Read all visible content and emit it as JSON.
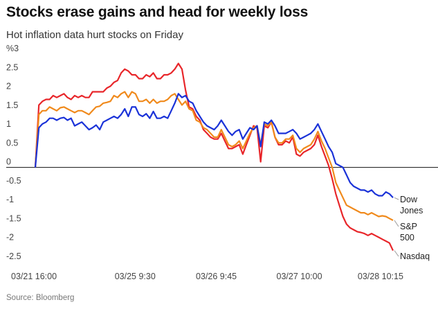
{
  "header": {
    "title": "Stocks erase gains and head for weekly loss",
    "subtitle": "Hot inflation data hurt stocks on Friday"
  },
  "footer": {
    "source": "Source: Bloomberg"
  },
  "chart_data": {
    "type": "line",
    "ylabel": "%3",
    "ylim": [
      -2.5,
      3
    ],
    "y_ticks": [
      "3",
      "2.5",
      "2",
      "1.5",
      "1",
      "0.5",
      "0",
      "-0.5",
      "-1",
      "-1.5",
      "-2",
      "-2.5"
    ],
    "x_ticks": [
      "03/21 16:00",
      "03/25 9:30",
      "03/26 9:45",
      "03/27 10:00",
      "03/28 10:15"
    ],
    "x_range": [
      0,
      100
    ],
    "zero_line": true,
    "grid": false,
    "series": [
      {
        "name": "Dow Jones",
        "label_lines": [
          "Dow",
          "Jones"
        ],
        "color": "#1a32d8",
        "x": [
          0,
          1,
          2,
          3,
          4,
          5,
          6,
          7,
          8,
          9,
          10,
          11,
          12,
          13,
          14,
          15,
          16,
          17,
          18,
          19,
          20,
          21,
          22,
          23,
          24,
          25,
          26,
          27,
          28,
          29,
          30,
          31,
          32,
          33,
          34,
          35,
          36,
          37,
          38,
          39,
          40,
          41,
          42,
          43,
          44,
          45,
          46,
          47,
          48,
          49,
          50,
          51,
          52,
          53,
          54,
          55,
          56,
          57,
          58,
          59,
          60,
          61,
          62,
          63,
          64,
          65,
          66,
          67,
          68,
          69,
          70,
          71,
          72,
          73,
          74,
          75,
          76,
          77,
          78,
          79,
          80,
          81,
          82,
          83,
          84,
          85,
          86,
          87,
          88,
          89,
          90,
          91,
          92,
          93,
          94,
          95,
          96,
          97,
          98,
          99,
          100
        ],
        "y": [
          0,
          1.05,
          1.15,
          1.2,
          1.3,
          1.3,
          1.25,
          1.3,
          1.32,
          1.25,
          1.3,
          1.1,
          1.15,
          1.2,
          1.1,
          1.0,
          1.05,
          1.12,
          1.0,
          1.2,
          1.25,
          1.3,
          1.35,
          1.3,
          1.4,
          1.55,
          1.35,
          1.6,
          1.6,
          1.4,
          1.35,
          1.42,
          1.3,
          1.48,
          1.3,
          1.3,
          1.35,
          1.3,
          1.5,
          1.7,
          1.95,
          1.85,
          1.9,
          1.75,
          1.7,
          1.5,
          1.35,
          1.2,
          1.1,
          1.05,
          1.0,
          1.1,
          1.25,
          1.1,
          0.95,
          0.85,
          0.95,
          1.0,
          0.75,
          0.9,
          1.05,
          1.0,
          1.1,
          0.55,
          1.2,
          1.15,
          1.25,
          1.1,
          0.9,
          0.9,
          0.9,
          0.95,
          1.0,
          0.9,
          0.75,
          0.8,
          0.85,
          0.9,
          1.0,
          1.15,
          0.95,
          0.75,
          0.55,
          0.4,
          0.1,
          0.05,
          0.0,
          -0.2,
          -0.4,
          -0.5,
          -0.55,
          -0.6,
          -0.6,
          -0.65,
          -0.6,
          -0.7,
          -0.75,
          -0.75,
          -0.65,
          -0.7,
          -0.8
        ]
      },
      {
        "name": "S&P 500",
        "label_lines": [
          "S&P",
          "500"
        ],
        "color": "#f08a1c",
        "x": [
          0,
          1,
          2,
          3,
          4,
          5,
          6,
          7,
          8,
          9,
          10,
          11,
          12,
          13,
          14,
          15,
          16,
          17,
          18,
          19,
          20,
          21,
          22,
          23,
          24,
          25,
          26,
          27,
          28,
          29,
          30,
          31,
          32,
          33,
          34,
          35,
          36,
          37,
          38,
          39,
          40,
          41,
          42,
          43,
          44,
          45,
          46,
          47,
          48,
          49,
          50,
          51,
          52,
          53,
          54,
          55,
          56,
          57,
          58,
          59,
          60,
          61,
          62,
          63,
          64,
          65,
          66,
          67,
          68,
          69,
          70,
          71,
          72,
          73,
          74,
          75,
          76,
          77,
          78,
          79,
          80,
          81,
          82,
          83,
          84,
          85,
          86,
          87,
          88,
          89,
          90,
          91,
          92,
          93,
          94,
          95,
          96,
          97,
          98,
          99,
          100
        ],
        "y": [
          0,
          1.4,
          1.5,
          1.5,
          1.6,
          1.55,
          1.5,
          1.58,
          1.6,
          1.55,
          1.5,
          1.45,
          1.5,
          1.5,
          1.45,
          1.4,
          1.5,
          1.6,
          1.62,
          1.7,
          1.72,
          1.75,
          1.9,
          1.85,
          1.95,
          2.0,
          1.85,
          2.0,
          1.95,
          1.75,
          1.75,
          1.8,
          1.7,
          1.8,
          1.7,
          1.75,
          1.75,
          1.8,
          1.9,
          1.95,
          1.8,
          1.65,
          1.75,
          1.55,
          1.5,
          1.25,
          1.2,
          1.05,
          1.0,
          0.9,
          0.8,
          0.8,
          1.0,
          0.8,
          0.6,
          0.55,
          0.6,
          0.7,
          0.5,
          0.7,
          0.9,
          1.05,
          1.1,
          0.6,
          1.15,
          1.1,
          1.2,
          0.8,
          0.65,
          0.65,
          0.75,
          0.75,
          0.85,
          0.5,
          0.4,
          0.5,
          0.55,
          0.6,
          0.75,
          0.95,
          0.7,
          0.5,
          0.25,
          0.0,
          -0.4,
          -0.6,
          -0.8,
          -1.0,
          -1.05,
          -1.1,
          -1.15,
          -1.2,
          -1.2,
          -1.25,
          -1.2,
          -1.25,
          -1.3,
          -1.28,
          -1.3,
          -1.35,
          -1.4
        ]
      },
      {
        "name": "Nasdaq",
        "label_lines": [
          "Nasdaq"
        ],
        "color": "#e8262a",
        "x": [
          0,
          1,
          2,
          3,
          4,
          5,
          6,
          7,
          8,
          9,
          10,
          11,
          12,
          13,
          14,
          15,
          16,
          17,
          18,
          19,
          20,
          21,
          22,
          23,
          24,
          25,
          26,
          27,
          28,
          29,
          30,
          31,
          32,
          33,
          34,
          35,
          36,
          37,
          38,
          39,
          40,
          41,
          42,
          43,
          44,
          45,
          46,
          47,
          48,
          49,
          50,
          51,
          52,
          53,
          54,
          55,
          56,
          57,
          58,
          59,
          60,
          61,
          62,
          63,
          64,
          65,
          66,
          67,
          68,
          69,
          70,
          71,
          72,
          73,
          74,
          75,
          76,
          77,
          78,
          79,
          80,
          81,
          82,
          83,
          84,
          85,
          86,
          87,
          88,
          89,
          90,
          91,
          92,
          93,
          94,
          95,
          96,
          97,
          98,
          99,
          100
        ],
        "y": [
          0,
          1.65,
          1.75,
          1.8,
          1.8,
          1.9,
          1.85,
          1.9,
          1.95,
          1.85,
          1.8,
          1.9,
          1.85,
          1.9,
          1.85,
          1.85,
          2.0,
          2.0,
          2.0,
          2.0,
          2.1,
          2.15,
          2.25,
          2.3,
          2.5,
          2.6,
          2.55,
          2.45,
          2.45,
          2.35,
          2.35,
          2.45,
          2.4,
          2.5,
          2.35,
          2.35,
          2.45,
          2.45,
          2.5,
          2.6,
          2.75,
          2.6,
          2.05,
          1.6,
          1.55,
          1.35,
          1.25,
          1.0,
          0.9,
          0.8,
          0.75,
          0.75,
          0.9,
          0.7,
          0.5,
          0.5,
          0.55,
          0.6,
          0.35,
          0.6,
          0.85,
          1.1,
          1.05,
          0.15,
          1.1,
          1.05,
          1.2,
          0.8,
          0.6,
          0.6,
          0.7,
          0.65,
          0.8,
          0.35,
          0.3,
          0.4,
          0.45,
          0.5,
          0.6,
          0.85,
          0.55,
          0.3,
          0.05,
          -0.3,
          -0.7,
          -1.0,
          -1.3,
          -1.5,
          -1.6,
          -1.65,
          -1.7,
          -1.72,
          -1.75,
          -1.8,
          -1.75,
          -1.8,
          -1.85,
          -1.9,
          -1.95,
          -2.0,
          -2.2
        ]
      }
    ]
  }
}
